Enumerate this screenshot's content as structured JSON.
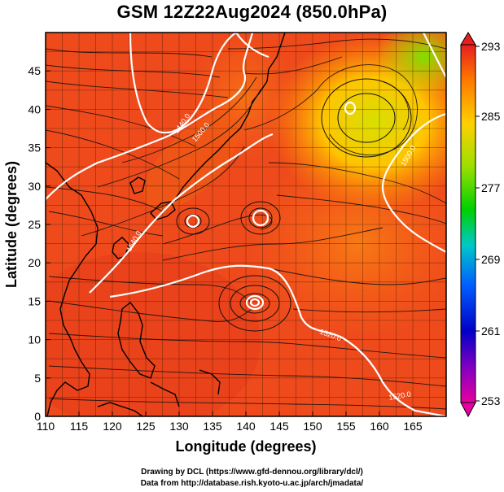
{
  "title": "GSM 12Z22Aug2024 (850.0hPa)",
  "axes": {
    "xlabel": "Longitude (degrees)",
    "ylabel": "Latitude  (degrees)",
    "x_ticks": [
      "110",
      "115",
      "120",
      "125",
      "130",
      "135",
      "140",
      "145",
      "150",
      "155",
      "160",
      "165"
    ],
    "y_ticks": [
      "0",
      "5",
      "10",
      "15",
      "20",
      "25",
      "30",
      "35",
      "40",
      "45"
    ],
    "xlim": [
      110,
      170
    ],
    "ylim": [
      0,
      50
    ]
  },
  "colorbar": {
    "ticks": [
      "293",
      "285",
      "277",
      "269",
      "261",
      "253"
    ],
    "range": [
      253,
      293
    ]
  },
  "contour_labels": [
    "1440.0",
    "1500.0",
    "1500.0",
    "1540.0",
    "1520.0",
    "1520.0"
  ],
  "footer": {
    "line1": "Drawing by DCL (https://www.gfd-dennou.org/library/dcl/)",
    "line2": "Data from http://database.rish.kyoto-u.ac.jp/arch/jmadata/"
  },
  "colors": {
    "warm": "#ee4a1c",
    "cool_anomaly": "#ffd400",
    "streamline": "#111111",
    "contour": "#ffffff"
  }
}
